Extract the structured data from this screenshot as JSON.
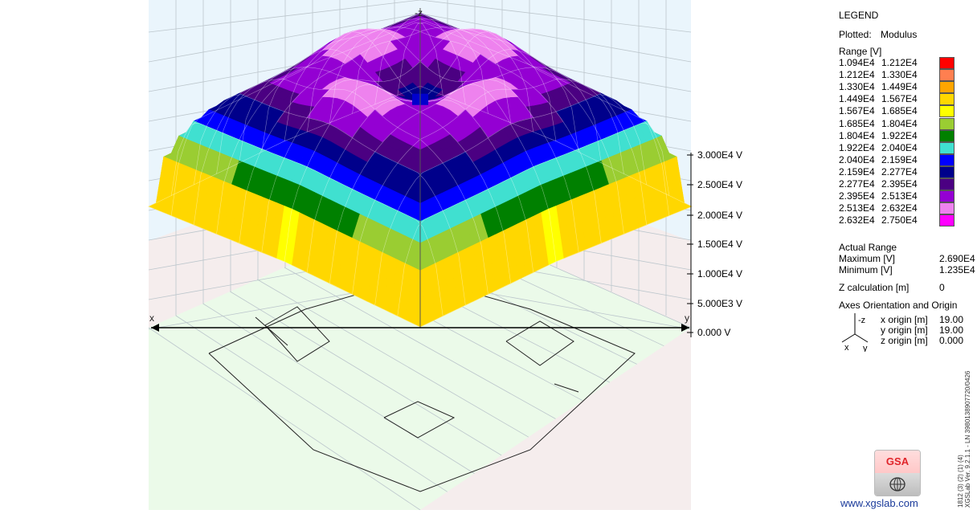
{
  "plot": {
    "axis_labels": {
      "neg_z": "-z",
      "x": "x",
      "y": "y"
    },
    "z_ticks": [
      "3.000E4 V",
      "2.500E4 V",
      "2.000E4 V",
      "1.500E4 V",
      "1.000E4 V",
      "5.000E3 V",
      "0.000 V"
    ],
    "colors": {
      "panel_top": "#eaf5fc",
      "floor": "#ebfae9",
      "floor_below": "#f5eded"
    }
  },
  "legend": {
    "title": "LEGEND",
    "plotted_label": "Plotted:",
    "plotted_value": "Modulus",
    "range_label": "Range [V]",
    "ranges": [
      {
        "from": "1.094E4",
        "to": "1.212E4",
        "color": "#ff0000"
      },
      {
        "from": "1.212E4",
        "to": "1.330E4",
        "color": "#ff7f50"
      },
      {
        "from": "1.330E4",
        "to": "1.449E4",
        "color": "#ffa500"
      },
      {
        "from": "1.449E4",
        "to": "1.567E4",
        "color": "#ffd700"
      },
      {
        "from": "1.567E4",
        "to": "1.685E4",
        "color": "#ffff00"
      },
      {
        "from": "1.685E4",
        "to": "1.804E4",
        "color": "#9acd32"
      },
      {
        "from": "1.804E4",
        "to": "1.922E4",
        "color": "#008000"
      },
      {
        "from": "1.922E4",
        "to": "2.040E4",
        "color": "#40e0d0"
      },
      {
        "from": "2.040E4",
        "to": "2.159E4",
        "color": "#0000ff"
      },
      {
        "from": "2.159E4",
        "to": "2.277E4",
        "color": "#00008b"
      },
      {
        "from": "2.277E4",
        "to": "2.395E4",
        "color": "#4b0082"
      },
      {
        "from": "2.395E4",
        "to": "2.513E4",
        "color": "#9400d3"
      },
      {
        "from": "2.513E4",
        "to": "2.632E4",
        "color": "#ee82ee"
      },
      {
        "from": "2.632E4",
        "to": "2.750E4",
        "color": "#ff00ff"
      }
    ],
    "actual_range_label": "Actual Range",
    "maximum_label": "Maximum [V]",
    "maximum_value": "2.690E4",
    "minimum_label": "Minimum [V]",
    "minimum_value": "1.235E4",
    "zcalc_label": "Z calculation [m]",
    "zcalc_value": "0",
    "axes_title": "Axes Orientation and Origin",
    "axes_mini": {
      "z": "-z",
      "x": "x",
      "y": "y"
    },
    "origins": [
      {
        "label": "x origin [m]",
        "value": "19.00"
      },
      {
        "label": "y origin [m]",
        "value": "19.00"
      },
      {
        "label": "z origin [m]",
        "value": "0.000"
      }
    ],
    "logo_text": "GSA",
    "website": "www.xgslab.com",
    "version_line1": "1812 (3) (2) (1) (4)",
    "version_line2": "XGSLab Ver. 9.2.1.1 - LN 3980138907720/0426"
  }
}
